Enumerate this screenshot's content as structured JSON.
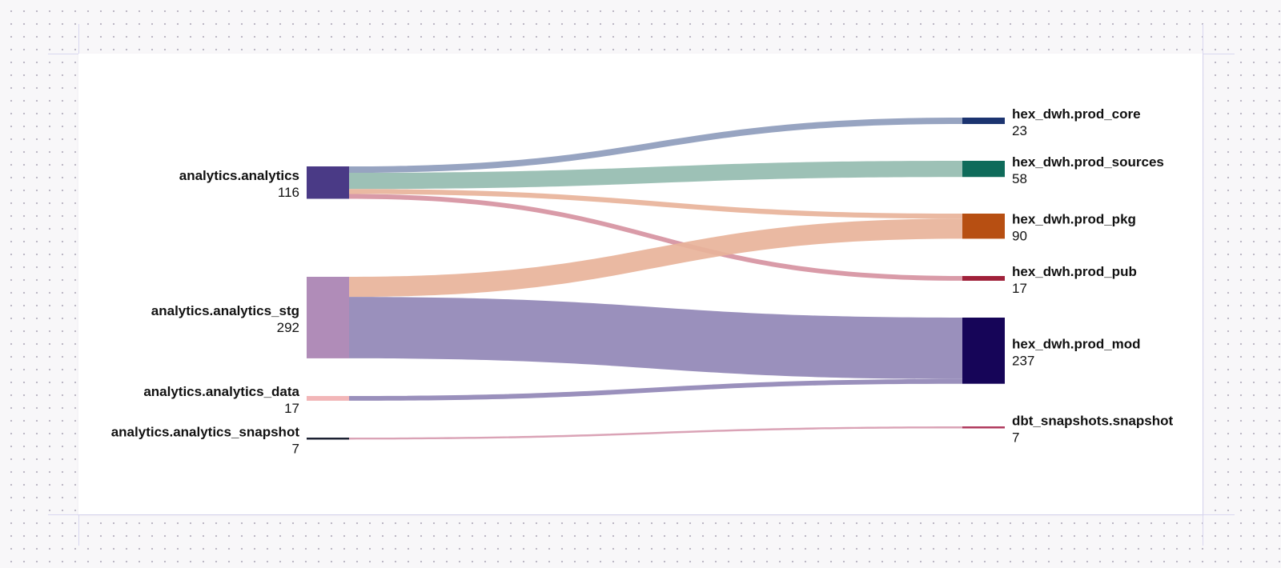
{
  "chart_data": {
    "type": "sankey",
    "title": "",
    "sources": [
      {
        "name": "analytics.analytics",
        "value": 116,
        "color": "#4a3a86"
      },
      {
        "name": "analytics.analytics_stg",
        "value": 292,
        "color": "#b08cb8"
      },
      {
        "name": "analytics.analytics_data",
        "value": 17,
        "color": "#f2b6b8"
      },
      {
        "name": "analytics.analytics_snapshot",
        "value": 7,
        "color": "#1d2233"
      }
    ],
    "targets": [
      {
        "name": "hex_dwh.prod_core",
        "value": 23,
        "color": "#1c3470"
      },
      {
        "name": "hex_dwh.prod_sources",
        "value": 58,
        "color": "#0f6b5a"
      },
      {
        "name": "hex_dwh.prod_pkg",
        "value": 90,
        "color": "#b74f12"
      },
      {
        "name": "hex_dwh.prod_pub",
        "value": 17,
        "color": "#a0213a"
      },
      {
        "name": "hex_dwh.prod_mod",
        "value": 237,
        "color": "#160558"
      },
      {
        "name": "dbt_snapshots.snapshot",
        "value": 7,
        "color": "#b03a5e"
      }
    ],
    "links": [
      {
        "source": "analytics.analytics",
        "target": "hex_dwh.prod_core",
        "value": 23,
        "color": "#8e9cbc"
      },
      {
        "source": "analytics.analytics",
        "target": "hex_dwh.prod_sources",
        "value": 58,
        "color": "#95bcb0"
      },
      {
        "source": "analytics.analytics",
        "target": "hex_dwh.prod_pkg",
        "value": 18,
        "color": "#e8b39a"
      },
      {
        "source": "analytics.analytics",
        "target": "hex_dwh.prod_pub",
        "value": 17,
        "color": "#d693a1"
      },
      {
        "source": "analytics.analytics_stg",
        "target": "hex_dwh.prod_pkg",
        "value": 72,
        "color": "#e8b39a"
      },
      {
        "source": "analytics.analytics_stg",
        "target": "hex_dwh.prod_mod",
        "value": 220,
        "color": "#9187b6"
      },
      {
        "source": "analytics.analytics_data",
        "target": "hex_dwh.prod_mod",
        "value": 17,
        "color": "#9187b6"
      },
      {
        "source": "analytics.analytics_snapshot",
        "target": "dbt_snapshots.snapshot",
        "value": 7,
        "color": "#d79bb0"
      }
    ]
  }
}
